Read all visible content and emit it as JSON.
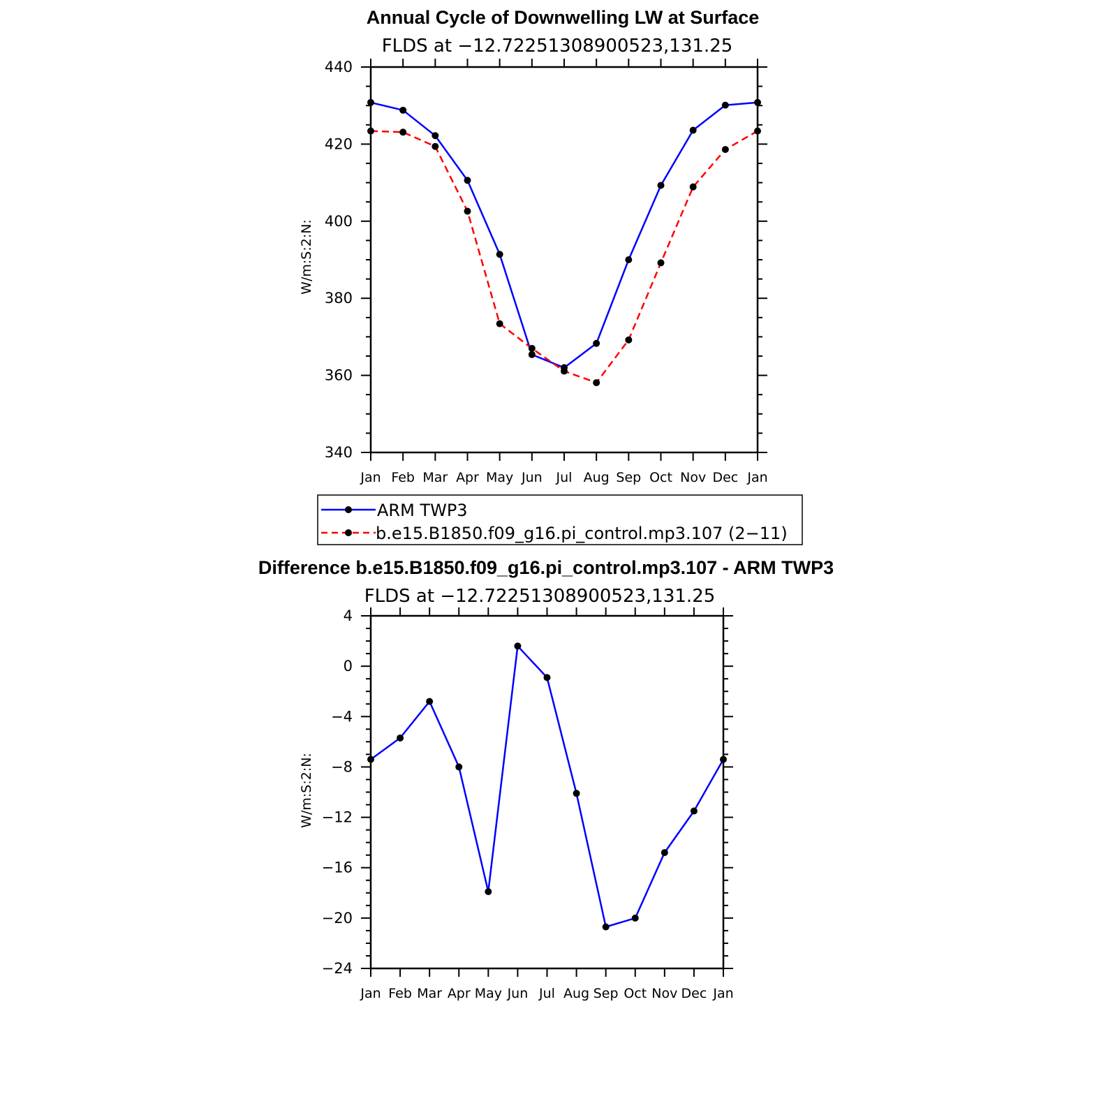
{
  "charts": [
    {
      "title": "Annual Cycle of Downwelling LW at Surface",
      "subtitle": "FLDS at −12.72251308900523,131.25",
      "ylabel": "W/m:S:2:N:",
      "y_tick_labels": [
        "340",
        "360",
        "380",
        "400",
        "420",
        "440"
      ],
      "x_tick_labels": [
        "Jan",
        "Feb",
        "Mar",
        "Apr",
        "May",
        "Jun",
        "Jul",
        "Aug",
        "Sep",
        "Oct",
        "Nov",
        "Dec",
        "Jan"
      ],
      "legend": [
        "ARM TWP3",
        "b.e15.B1850.f09_g16.pi_control.mp3.107 (2−11)"
      ]
    },
    {
      "title": "Difference b.e15.B1850.f09_g16.pi_control.mp3.107 - ARM TWP3",
      "subtitle": "FLDS at −12.72251308900523,131.25",
      "ylabel": "W/m:S:2:N:",
      "y_tick_labels": [
        "−24",
        "−20",
        "−16",
        "−12",
        "−8",
        "−4",
        "0",
        "4"
      ],
      "x_tick_labels": [
        "Jan",
        "Feb",
        "Mar",
        "Apr",
        "May",
        "Jun",
        "Jul",
        "Aug",
        "Sep",
        "Oct",
        "Nov",
        "Dec",
        "Jan"
      ]
    }
  ],
  "chart_data": [
    {
      "type": "line",
      "title": "Annual Cycle of Downwelling LW at Surface",
      "subtitle": "FLDS at −12.72251308900523,131.25",
      "ylabel": "W/m:S:2:N:",
      "categories": [
        "Jan",
        "Feb",
        "Mar",
        "Apr",
        "May",
        "Jun",
        "Jul",
        "Aug",
        "Sep",
        "Oct",
        "Nov",
        "Dec",
        "Jan"
      ],
      "ylim": [
        340,
        440
      ],
      "y_ticks": [
        340,
        360,
        380,
        400,
        420,
        440
      ],
      "legend_position": "below",
      "series": [
        {
          "name": "ARM TWP3",
          "color": "#0000ff",
          "dash": "solid",
          "values": [
            430.8,
            428.8,
            422.2,
            410.6,
            391.4,
            365.4,
            362.0,
            368.3,
            390.0,
            409.3,
            423.6,
            430.1,
            430.8
          ]
        },
        {
          "name": "b.e15.B1850.f09_g16.pi_control.mp3.107 (2−11)",
          "color": "#ff0000",
          "dash": "dashed",
          "values": [
            423.4,
            423.1,
            419.4,
            402.6,
            373.4,
            367.0,
            361.1,
            358.1,
            369.2,
            389.2,
            408.9,
            418.6,
            423.4
          ]
        }
      ]
    },
    {
      "type": "line",
      "title": "Difference b.e15.B1850.f09_g16.pi_control.mp3.107 - ARM TWP3",
      "subtitle": "FLDS at −12.72251308900523,131.25",
      "ylabel": "W/m:S:2:N:",
      "categories": [
        "Jan",
        "Feb",
        "Mar",
        "Apr",
        "May",
        "Jun",
        "Jul",
        "Aug",
        "Sep",
        "Oct",
        "Nov",
        "Dec",
        "Jan"
      ],
      "ylim": [
        -24,
        4
      ],
      "y_ticks": [
        -24,
        -20,
        -16,
        -12,
        -8,
        -4,
        0,
        4
      ],
      "series": [
        {
          "color": "#0000ff",
          "dash": "solid",
          "values": [
            -7.4,
            -5.7,
            -2.8,
            -8.0,
            -17.9,
            1.6,
            -0.9,
            -10.1,
            -20.7,
            -20.0,
            -14.8,
            -11.5,
            -7.4
          ]
        }
      ]
    }
  ]
}
